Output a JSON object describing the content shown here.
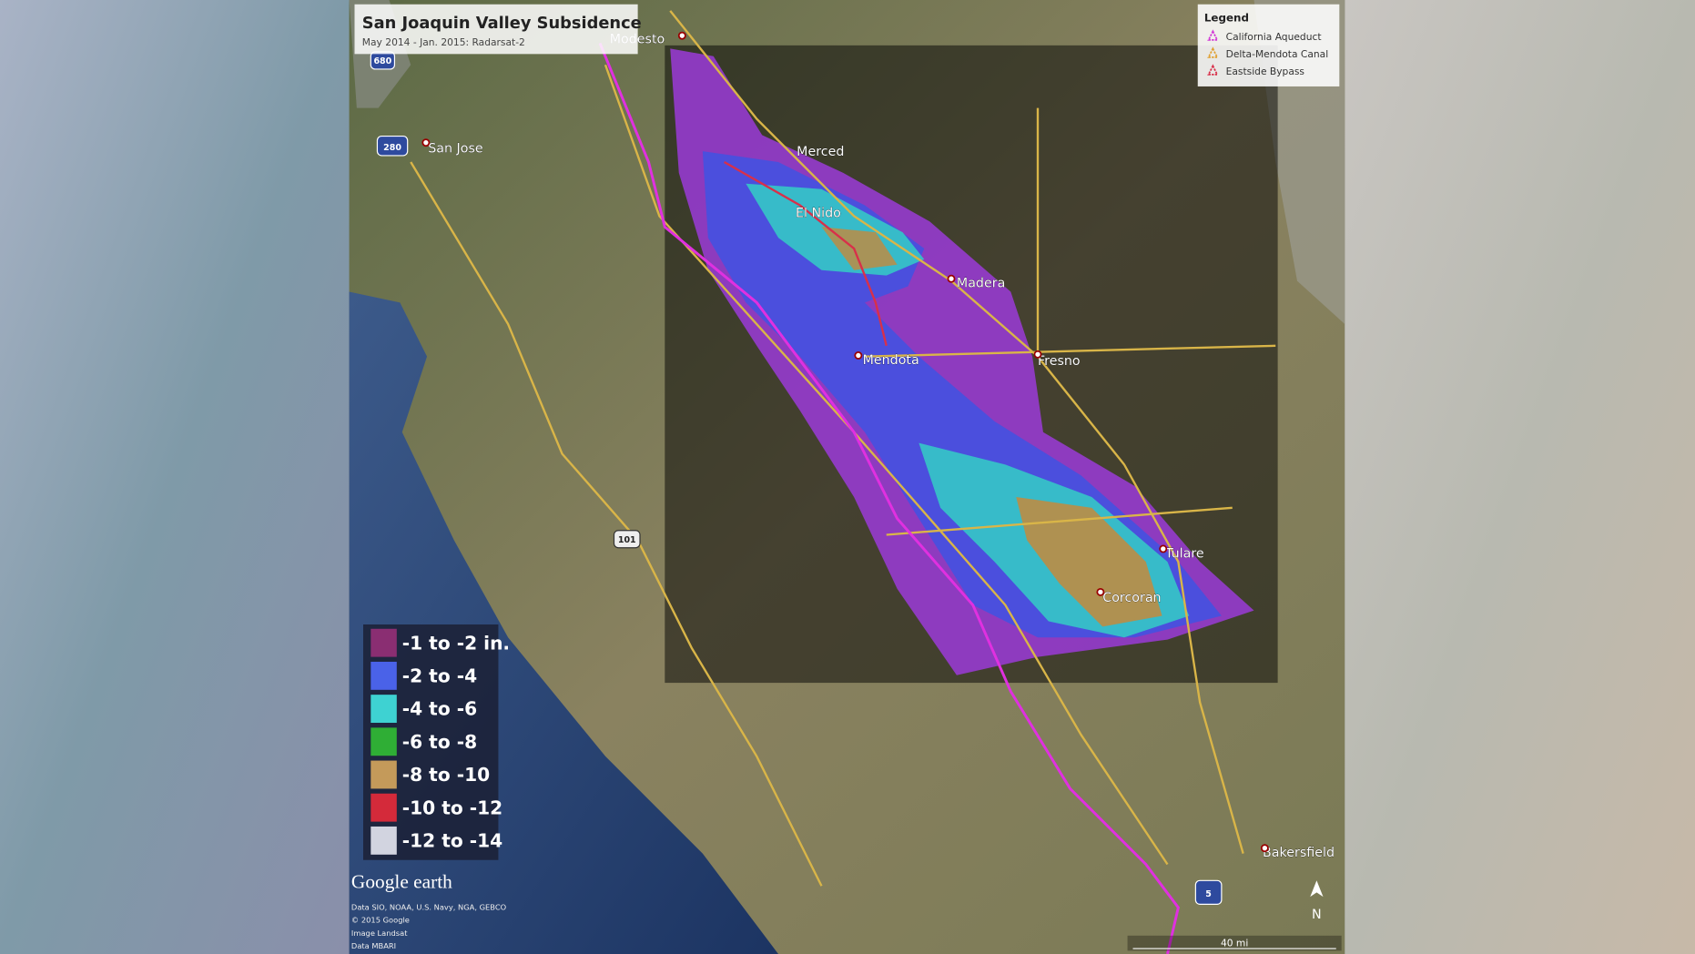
{
  "header": {
    "title": "San Joaquin Valley Subsidence",
    "subtitle": "May 2014 - Jan. 2015: Radarsat-2"
  },
  "legend": {
    "title": "Legend",
    "items": [
      {
        "label": "California Aqueduct",
        "color": "#d23ad6"
      },
      {
        "label": "Delta-Mendota Canal",
        "color": "#e0a030"
      },
      {
        "label": "Eastside Bypass",
        "color": "#d8304a"
      }
    ]
  },
  "scale": [
    {
      "label": "-1 to -2 in.",
      "color": "#8a2e72"
    },
    {
      "label": "-2 to -4",
      "color": "#4a62e8"
    },
    {
      "label": "-4 to -6",
      "color": "#3ed2d2"
    },
    {
      "label": "-6 to -8",
      "color": "#2fae35"
    },
    {
      "label": "-8 to -10",
      "color": "#c49a5a"
    },
    {
      "label": "-10 to -12",
      "color": "#d42a3a"
    },
    {
      "label": "-12 to -14",
      "color": "#d2d4e0"
    }
  ],
  "cities": [
    "Modesto",
    "San Jose",
    "Merced",
    "El Nido",
    "Madera",
    "Mendota",
    "Fresno",
    "Tulare",
    "Corcoran",
    "Bakersfield"
  ],
  "shields": [
    "680",
    "280",
    "101",
    "5"
  ],
  "attribution": {
    "logo": "Google earth",
    "lines": [
      "Data SIO, NOAA, U.S. Navy, NGA, GEBCO",
      "© 2015 Google",
      "Image Landsat",
      "Data MBARI"
    ]
  },
  "scale_bar": "40 mi",
  "north": "N"
}
